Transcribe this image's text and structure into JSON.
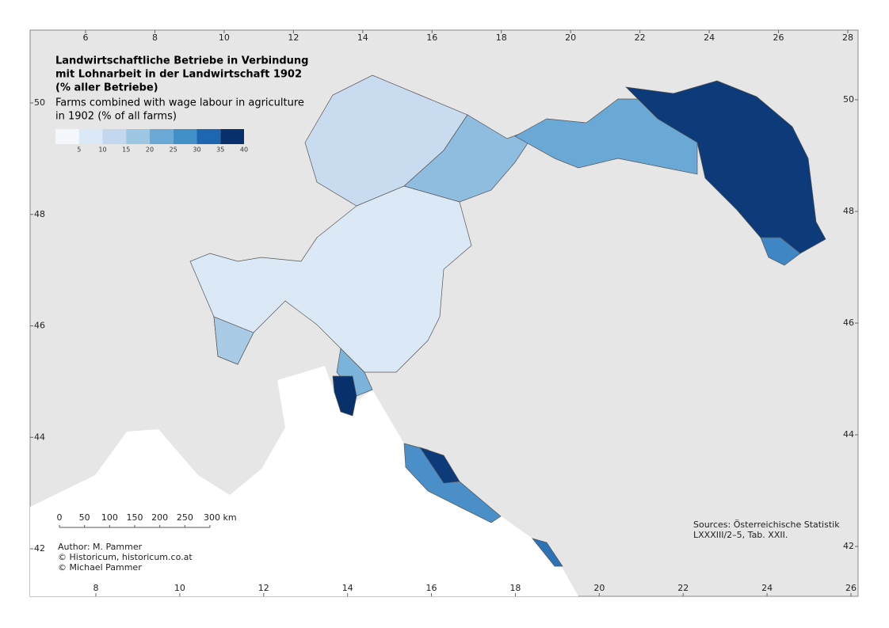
{
  "title_lines": [
    "Landwirtschaftliche Betriebe in Verbindung",
    "mit Lohnarbeit in der Landwirtschaft 1902",
    "(% aller Betriebe)"
  ],
  "subtitle_lines": [
    "Farms combined with wage labour in agriculture",
    "in 1902 (% of all farms)"
  ],
  "legend": {
    "labels": [
      5,
      10,
      15,
      20,
      25,
      30,
      35,
      40
    ],
    "colors": [
      "#f4f8fd",
      "#dbe8f6",
      "#c3d8ee",
      "#9dc6e2",
      "#6aa9d6",
      "#4290c8",
      "#1f66b0",
      "#08306b"
    ]
  },
  "top_ticks": [
    6,
    8,
    10,
    12,
    14,
    16,
    18,
    20,
    22,
    24,
    26,
    28
  ],
  "bottom_ticks": [
    8,
    10,
    12,
    14,
    16,
    18,
    20,
    22,
    24,
    26
  ],
  "left_ticks": [
    50,
    48,
    46,
    44,
    42
  ],
  "right_ticks": [
    50,
    48,
    46,
    44,
    42
  ],
  "scale_bar": [
    0,
    50,
    100,
    150,
    200,
    250,
    {
      "value": 300,
      "label": "300 km"
    }
  ],
  "author_lines": [
    "Author: M. Pammer",
    "© Historicum, historicum.co.at",
    "© Michael Pammer"
  ],
  "source_lines": [
    "Sources: Österreichische Statistik",
    "LXXXIII/2–5, Tab. XXII."
  ]
}
